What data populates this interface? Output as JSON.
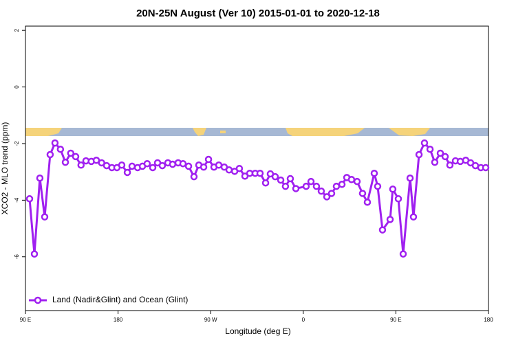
{
  "chart_data": {
    "type": "line",
    "title": "20N-25N August (Ver 10)   2015-01-01 to 2020-12-18",
    "x_label": "Longitude (deg E)",
    "y_label": "XCO2 - MLO trend (ppm)",
    "xlim": [
      90,
      540
    ],
    "ylim": [
      -7.9,
      2.15
    ],
    "xticks": [
      {
        "value": 90,
        "label": "90 E"
      },
      180,
      {
        "value": 270,
        "label": "90 W"
      },
      {
        "value": 360,
        "label": "0"
      },
      {
        "value": 450,
        "label": "90 E"
      },
      {
        "value": 540,
        "label": "180"
      }
    ],
    "yticks": [
      -6,
      -4,
      -2,
      0,
      2
    ],
    "legend": "bottom-left",
    "series": [
      {
        "name": "Land (Nadir&Glint) and Ocean (Glint)",
        "color": "#a020f0",
        "x": [
          94,
          98.7,
          104,
          108.7,
          114,
          118.7,
          124,
          128.8,
          134,
          138.8,
          144,
          148.8,
          154,
          158.9,
          164,
          168.9,
          174,
          178.9,
          183.6,
          189,
          193.6,
          199,
          203.7,
          208.3,
          213.7,
          218.4,
          223,
          228.4,
          233,
          238.4,
          243.1,
          248.5,
          253.8,
          258.5,
          263.2,
          267.9,
          273.2,
          277.9,
          283.2,
          287.9,
          293.3,
          297.9,
          303.3,
          308,
          313.3,
          318,
          323.4,
          328,
          332.7,
          338.1,
          342.7,
          347.4,
          352.8,
          362.8,
          367.5,
          372.8,
          377.5,
          382.9,
          387.5,
          392.2,
          397.6,
          402.3,
          406.9,
          412.3,
          417.6,
          422.3,
          429,
          432.3,
          437,
          444.4,
          447,
          452.4,
          457.1,
          463.8,
          467.1,
          472.5,
          477.8,
          483.2,
          487.8,
          493.2,
          497.9,
          502.5,
          507.9,
          512.6,
          517.9,
          522.6,
          527.3,
          532.6,
          537.3
        ],
        "values": [
          -3.95,
          -5.9,
          -3.22,
          -4.59,
          -2.39,
          -1.98,
          -2.2,
          -2.66,
          -2.34,
          -2.46,
          -2.76,
          -2.61,
          -2.63,
          -2.59,
          -2.68,
          -2.78,
          -2.85,
          -2.85,
          -2.76,
          -3.02,
          -2.8,
          -2.85,
          -2.8,
          -2.71,
          -2.85,
          -2.68,
          -2.78,
          -2.68,
          -2.73,
          -2.68,
          -2.71,
          -2.8,
          -3.17,
          -2.76,
          -2.83,
          -2.56,
          -2.83,
          -2.76,
          -2.83,
          -2.93,
          -2.98,
          -2.88,
          -3.15,
          -3.05,
          -3.05,
          -3.05,
          -3.39,
          -3.07,
          -3.17,
          -3.29,
          -3.51,
          -3.24,
          -3.59,
          -3.51,
          -3.34,
          -3.51,
          -3.68,
          -3.88,
          -3.76,
          -3.51,
          -3.44,
          -3.2,
          -3.27,
          -3.34,
          -3.76,
          -4.07,
          -3.05,
          -3.51,
          -5.05,
          -4.68,
          -3.61,
          -3.95,
          -5.9,
          -3.22,
          -4.59,
          -2.39,
          -1.98,
          -2.2,
          -2.66,
          -2.34,
          -2.46,
          -2.76,
          -2.61,
          -2.63,
          -2.59,
          -2.68,
          -2.78,
          -2.85,
          -2.85
        ]
      }
    ]
  }
}
